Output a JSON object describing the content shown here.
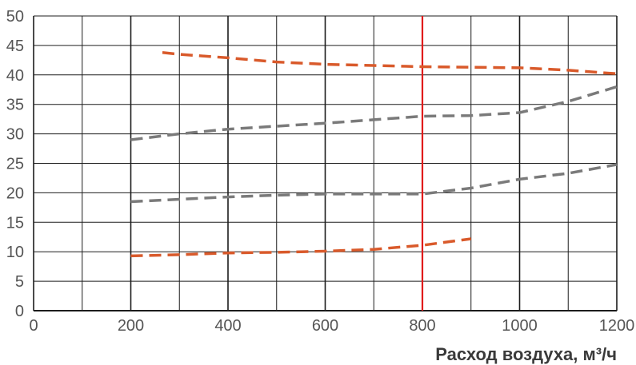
{
  "chart_data": {
    "type": "line",
    "title": "",
    "xlabel": "Расход воздуха, м³/ч",
    "ylabel": "",
    "xlim": [
      0,
      1200
    ],
    "ylim": [
      0,
      50
    ],
    "x_ticks": [
      0,
      200,
      400,
      600,
      800,
      1000,
      1200
    ],
    "y_ticks": [
      0,
      5,
      10,
      15,
      20,
      25,
      30,
      35,
      40,
      45,
      50
    ],
    "x_minor_step": 100,
    "grid": true,
    "legend": "none",
    "reference_lines": [
      {
        "axis": "x",
        "value": 800,
        "color": "#e01b1b"
      }
    ],
    "colors": {
      "orange": "#d95a2b",
      "gray": "#7a7a7a",
      "grid": "#1c1c1c",
      "reference": "#e01b1b",
      "tick_text": "#555555",
      "axis_title": "#3a3a3a"
    },
    "series": [
      {
        "color": "#d95a2b",
        "dash": "dashed",
        "points": [
          [
            265,
            43.8
          ],
          [
            300,
            43.5
          ],
          [
            400,
            42.9
          ],
          [
            500,
            42.2
          ],
          [
            600,
            41.8
          ],
          [
            700,
            41.6
          ],
          [
            800,
            41.4
          ],
          [
            900,
            41.3
          ],
          [
            1000,
            41.2
          ],
          [
            1100,
            40.8
          ],
          [
            1200,
            40.2
          ]
        ]
      },
      {
        "color": "#7a7a7a",
        "dash": "dashed",
        "points": [
          [
            200,
            29
          ],
          [
            300,
            30
          ],
          [
            400,
            30.8
          ],
          [
            500,
            31.3
          ],
          [
            600,
            31.8
          ],
          [
            700,
            32.4
          ],
          [
            800,
            33
          ],
          [
            900,
            33.1
          ],
          [
            1000,
            33.6
          ],
          [
            1100,
            35.5
          ],
          [
            1200,
            38
          ]
        ]
      },
      {
        "color": "#7a7a7a",
        "dash": "dashed",
        "points": [
          [
            200,
            18.5
          ],
          [
            300,
            18.9
          ],
          [
            400,
            19.3
          ],
          [
            500,
            19.6
          ],
          [
            600,
            19.8
          ],
          [
            700,
            19.8
          ],
          [
            800,
            19.8
          ],
          [
            900,
            20.8
          ],
          [
            1000,
            22.3
          ],
          [
            1100,
            23.3
          ],
          [
            1200,
            24.8
          ]
        ]
      },
      {
        "color": "#d95a2b",
        "dash": "dashed",
        "points": [
          [
            200,
            9.3
          ],
          [
            300,
            9.5
          ],
          [
            400,
            9.8
          ],
          [
            500,
            9.9
          ],
          [
            600,
            10.1
          ],
          [
            700,
            10.4
          ],
          [
            800,
            11.1
          ],
          [
            900,
            12.2
          ]
        ]
      }
    ]
  }
}
